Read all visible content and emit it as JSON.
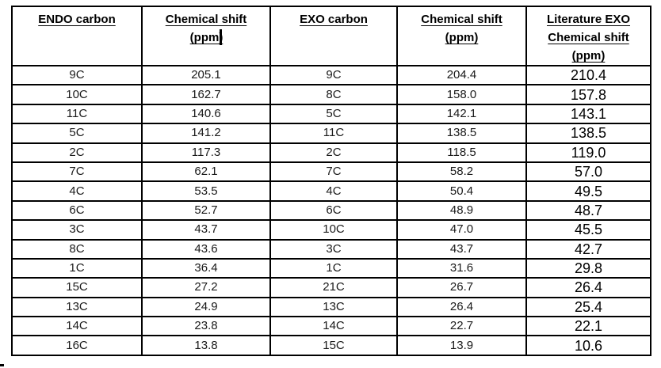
{
  "table": {
    "cursor_column": 1,
    "columns": [
      {
        "id": "endo-carbon",
        "header_lines": [
          "ENDO carbon"
        ]
      },
      {
        "id": "endo-chemical-shift",
        "header_lines": [
          "Chemical shift",
          "(ppm)"
        ]
      },
      {
        "id": "exo-carbon",
        "header_lines": [
          "EXO carbon"
        ]
      },
      {
        "id": "exo-chemical-shift",
        "header_lines": [
          "Chemical shift",
          "(ppm)"
        ]
      },
      {
        "id": "literature-exo-chemical-shift",
        "header_lines": [
          "Literature EXO",
          "Chemical shift",
          "(ppm)"
        ]
      }
    ],
    "rows": [
      [
        "9C",
        "205.1",
        "9C",
        "204.4",
        "210.4"
      ],
      [
        "10C",
        "162.7",
        "8C",
        "158.0",
        "157.8"
      ],
      [
        "11C",
        "140.6",
        "5C",
        "142.1",
        "143.1"
      ],
      [
        "5C",
        "141.2",
        "11C",
        "138.5",
        "138.5"
      ],
      [
        "2C",
        "117.3",
        "2C",
        "118.5",
        "119.0"
      ],
      [
        "7C",
        "62.1",
        "7C",
        "58.2",
        "57.0"
      ],
      [
        "4C",
        "53.5",
        "4C",
        "50.4",
        "49.5"
      ],
      [
        "6C",
        "52.7",
        "6C",
        "48.9",
        "48.7"
      ],
      [
        "3C",
        "43.7",
        "10C",
        "47.0",
        "45.5"
      ],
      [
        "8C",
        "43.6",
        "3C",
        "43.7",
        "42.7"
      ],
      [
        "1C",
        "36.4",
        "1C",
        "31.6",
        "29.8"
      ],
      [
        "15C",
        "27.2",
        "21C",
        "26.7",
        "26.4"
      ],
      [
        "13C",
        "24.9",
        "13C",
        "26.4",
        "25.4"
      ],
      [
        "14C",
        "23.8",
        "14C",
        "22.7",
        "22.1"
      ],
      [
        "16C",
        "13.8",
        "15C",
        "13.9",
        "10.6"
      ]
    ],
    "colors": {
      "border": "#000000",
      "header_text": "#000000",
      "body_text": "#1a1a1a",
      "background": "#ffffff"
    }
  }
}
